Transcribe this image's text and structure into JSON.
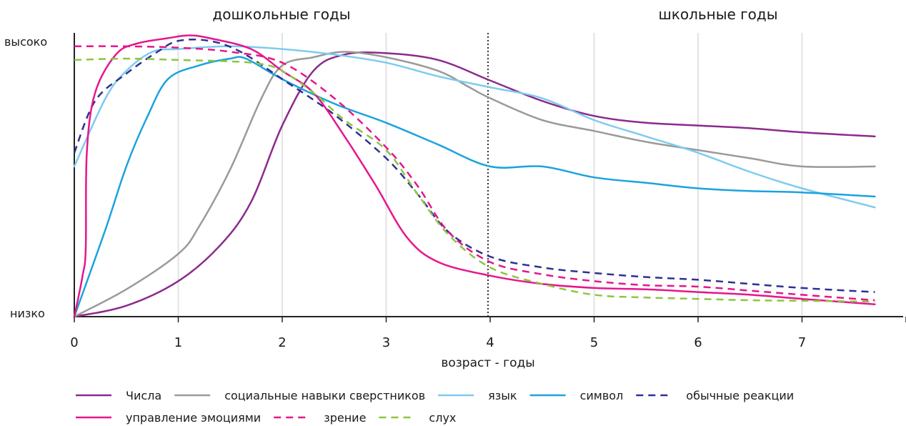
{
  "chart_data": {
    "type": "line",
    "period_labels": [
      "дошкольные годы",
      "школьные годы"
    ],
    "y_high_label": "высоко",
    "y_low_label": "низко",
    "xlabel": "возраст - годы",
    "x_ticks": [
      "0",
      "1",
      "2",
      "3",
      "4",
      "5",
      "6",
      "7"
    ],
    "xlim": [
      0,
      8
    ],
    "ylim": [
      0,
      1
    ],
    "grid": "vertical",
    "divider_x": 4,
    "legend_position": "bottom",
    "series": [
      {
        "name": "Числа",
        "color": "#8c2a8c",
        "dash": "solid",
        "points": [
          [
            0,
            0
          ],
          [
            0.5,
            0.04
          ],
          [
            1,
            0.13
          ],
          [
            1.4,
            0.26
          ],
          [
            1.7,
            0.42
          ],
          [
            2,
            0.7
          ],
          [
            2.3,
            0.9
          ],
          [
            2.6,
            0.96
          ],
          [
            3,
            0.965
          ],
          [
            3.5,
            0.94
          ],
          [
            4,
            0.865
          ],
          [
            4.5,
            0.79
          ],
          [
            5,
            0.735
          ],
          [
            5.5,
            0.71
          ],
          [
            6,
            0.7
          ],
          [
            6.5,
            0.69
          ],
          [
            7,
            0.675
          ],
          [
            7.7,
            0.66
          ]
        ]
      },
      {
        "name": "социальные навыки сверстников",
        "color": "#9a9a9a",
        "dash": "solid",
        "points": [
          [
            0,
            0
          ],
          [
            0.5,
            0.1
          ],
          [
            1,
            0.23
          ],
          [
            1.2,
            0.33
          ],
          [
            1.5,
            0.54
          ],
          [
            1.8,
            0.8
          ],
          [
            2,
            0.92
          ],
          [
            2.3,
            0.95
          ],
          [
            2.6,
            0.97
          ],
          [
            3,
            0.95
          ],
          [
            3.5,
            0.9
          ],
          [
            3.8,
            0.84
          ],
          [
            4,
            0.8
          ],
          [
            4.5,
            0.72
          ],
          [
            5,
            0.68
          ],
          [
            5.5,
            0.64
          ],
          [
            6,
            0.61
          ],
          [
            6.5,
            0.58
          ],
          [
            7,
            0.55
          ],
          [
            7.7,
            0.55
          ]
        ]
      },
      {
        "name": "язык",
        "color": "#7ecbee",
        "dash": "solid",
        "points": [
          [
            0,
            0.55
          ],
          [
            0.3,
            0.8
          ],
          [
            0.5,
            0.9
          ],
          [
            0.75,
            0.97
          ],
          [
            1,
            0.98
          ],
          [
            1.5,
            0.99
          ],
          [
            2,
            0.98
          ],
          [
            2.5,
            0.96
          ],
          [
            3,
            0.93
          ],
          [
            3.5,
            0.88
          ],
          [
            4,
            0.84
          ],
          [
            4.5,
            0.8
          ],
          [
            5,
            0.72
          ],
          [
            5.5,
            0.66
          ],
          [
            6,
            0.6
          ],
          [
            6.5,
            0.53
          ],
          [
            7,
            0.47
          ],
          [
            7.7,
            0.4
          ]
        ]
      },
      {
        "name": "символ",
        "color": "#1ba3dd",
        "dash": "solid",
        "points": [
          [
            0,
            0
          ],
          [
            0.3,
            0.32
          ],
          [
            0.5,
            0.55
          ],
          [
            0.7,
            0.73
          ],
          [
            0.9,
            0.87
          ],
          [
            1.2,
            0.92
          ],
          [
            1.5,
            0.945
          ],
          [
            1.65,
            0.945
          ],
          [
            2,
            0.87
          ],
          [
            2.5,
            0.78
          ],
          [
            3,
            0.71
          ],
          [
            3.5,
            0.63
          ],
          [
            4,
            0.55
          ],
          [
            4.5,
            0.55
          ],
          [
            5,
            0.51
          ],
          [
            5.5,
            0.49
          ],
          [
            6,
            0.47
          ],
          [
            6.5,
            0.46
          ],
          [
            7,
            0.455
          ],
          [
            7.7,
            0.44
          ]
        ]
      },
      {
        "name": "обычные реакции",
        "color": "#2e3192",
        "dash": "dashed",
        "points": [
          [
            0,
            0.6
          ],
          [
            0.2,
            0.79
          ],
          [
            0.5,
            0.89
          ],
          [
            0.8,
            0.97
          ],
          [
            1,
            1.01
          ],
          [
            1.3,
            1.01
          ],
          [
            1.6,
            0.97
          ],
          [
            2,
            0.87
          ],
          [
            2.5,
            0.74
          ],
          [
            3,
            0.58
          ],
          [
            3.3,
            0.45
          ],
          [
            3.6,
            0.31
          ],
          [
            4,
            0.22
          ],
          [
            4.5,
            0.18
          ],
          [
            5,
            0.16
          ],
          [
            5.5,
            0.145
          ],
          [
            6,
            0.135
          ],
          [
            6.5,
            0.12
          ],
          [
            7,
            0.105
          ],
          [
            7.7,
            0.09
          ]
        ]
      },
      {
        "name": "управление эмоциями",
        "color": "#e6168c",
        "dash": "solid",
        "points": [
          [
            0,
            0
          ],
          [
            0.08,
            0.15
          ],
          [
            0.11,
            0.25
          ],
          [
            0.12,
            0.6
          ],
          [
            0.2,
            0.82
          ],
          [
            0.4,
            0.96
          ],
          [
            0.6,
            1.0
          ],
          [
            0.9,
            1.02
          ],
          [
            1.1,
            1.03
          ],
          [
            1.3,
            1.02
          ],
          [
            1.7,
            0.98
          ],
          [
            2,
            0.9
          ],
          [
            2.3,
            0.82
          ],
          [
            2.6,
            0.66
          ],
          [
            2.9,
            0.48
          ],
          [
            3.2,
            0.29
          ],
          [
            3.5,
            0.2
          ],
          [
            4,
            0.15
          ],
          [
            4.5,
            0.12
          ],
          [
            5,
            0.105
          ],
          [
            5.5,
            0.1
          ],
          [
            6,
            0.09
          ],
          [
            6.5,
            0.08
          ],
          [
            7,
            0.065
          ],
          [
            7.7,
            0.045
          ]
        ]
      },
      {
        "name": "зрение",
        "color": "#e6168c",
        "dash": "dashed",
        "points": [
          [
            0,
            0.99
          ],
          [
            0.5,
            0.99
          ],
          [
            1,
            0.985
          ],
          [
            1.5,
            0.97
          ],
          [
            2,
            0.93
          ],
          [
            2.5,
            0.8
          ],
          [
            3,
            0.62
          ],
          [
            3.3,
            0.48
          ],
          [
            3.6,
            0.31
          ],
          [
            4,
            0.2
          ],
          [
            4.5,
            0.155
          ],
          [
            5,
            0.13
          ],
          [
            5.5,
            0.115
          ],
          [
            6,
            0.11
          ],
          [
            6.5,
            0.095
          ],
          [
            7,
            0.08
          ],
          [
            7.7,
            0.06
          ]
        ]
      },
      {
        "name": "слух",
        "color": "#8cc63f",
        "dash": "dashed",
        "points": [
          [
            0,
            0.94
          ],
          [
            0.5,
            0.945
          ],
          [
            1,
            0.94
          ],
          [
            1.5,
            0.935
          ],
          [
            1.8,
            0.925
          ],
          [
            2,
            0.9
          ],
          [
            2.3,
            0.82
          ],
          [
            2.6,
            0.72
          ],
          [
            3,
            0.61
          ],
          [
            3.3,
            0.45
          ],
          [
            3.6,
            0.3
          ],
          [
            4,
            0.18
          ],
          [
            4.5,
            0.12
          ],
          [
            5,
            0.08
          ],
          [
            5.5,
            0.07
          ],
          [
            6,
            0.065
          ],
          [
            6.5,
            0.06
          ],
          [
            7,
            0.058
          ],
          [
            7.7,
            0.055
          ]
        ]
      }
    ],
    "legend_rows": [
      [
        0,
        1,
        2,
        3,
        4
      ],
      [
        5,
        6,
        7
      ]
    ]
  }
}
